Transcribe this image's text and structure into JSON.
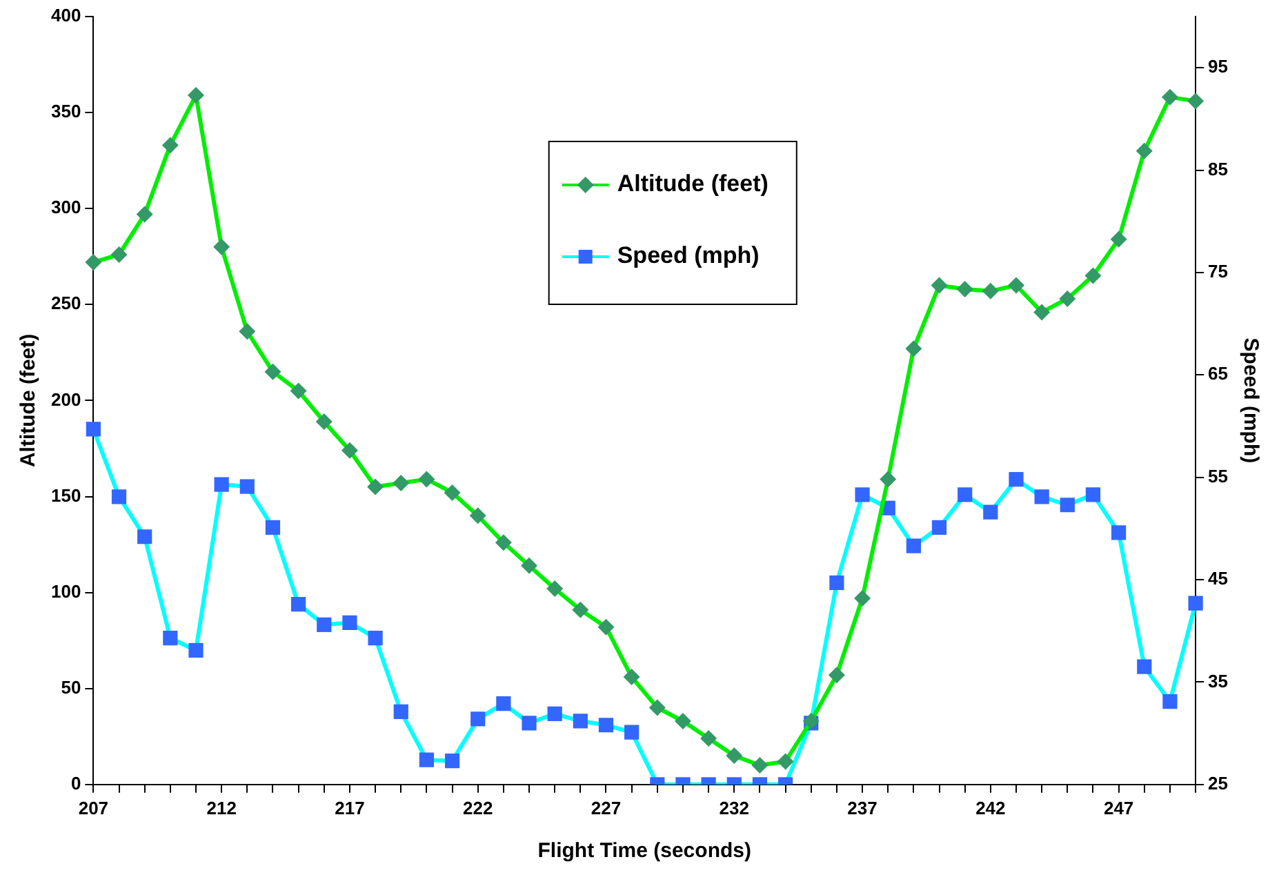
{
  "chart_data": {
    "type": "line",
    "xlabel": "Flight Time (seconds)",
    "ylabel": "Altitude (feet)",
    "y2label": "Speed (mph)",
    "categories": [
      "207",
      null,
      null,
      null,
      null,
      "212",
      null,
      null,
      null,
      null,
      "217",
      null,
      null,
      null,
      null,
      "222",
      null,
      null,
      null,
      null,
      "227",
      null,
      null,
      null,
      null,
      "232",
      null,
      null,
      null,
      null,
      "237",
      null,
      null,
      null,
      null,
      "242",
      null,
      null,
      null,
      null,
      "247",
      null,
      null,
      null
    ],
    "series": [
      {
        "name": "Altitude (feet)",
        "color": "#00ee00",
        "marker": "diamond",
        "values": [
          272,
          276,
          297,
          333,
          359,
          280,
          236,
          215,
          205,
          189,
          174,
          155,
          157,
          159,
          152,
          140,
          126,
          114,
          102,
          91,
          82,
          56,
          40,
          33,
          24,
          15,
          10,
          12,
          33,
          57,
          97,
          159,
          227,
          260,
          258,
          257,
          260,
          246,
          253,
          265,
          284,
          330,
          358,
          356
        ]
      },
      {
        "name": "Speed (mph)",
        "color": "#00ffff",
        "marker": "square",
        "axis": "y2",
        "values": [
          59.7,
          53.1,
          49.2,
          39.3,
          38.1,
          54.3,
          54.1,
          50.1,
          42.6,
          40.6,
          40.8,
          39.3,
          32.1,
          27.4,
          27.3,
          31.4,
          32.9,
          31,
          31.9,
          31.2,
          30.8,
          30.1,
          25,
          25,
          25,
          25,
          25,
          25,
          31,
          44.7,
          53.3,
          52,
          48.3,
          50.1,
          53.3,
          51.6,
          54.8,
          53.1,
          52.3,
          53.3,
          49.6,
          36.5,
          33.1,
          42.7
        ]
      }
    ],
    "ylim": [
      0,
      400
    ],
    "yticks": [
      0,
      50,
      100,
      150,
      200,
      250,
      300,
      350,
      400
    ],
    "y2lim": [
      25,
      100
    ],
    "y2ticks": [
      25,
      35,
      45,
      55,
      65,
      75,
      85,
      95
    ],
    "grid": false,
    "legend": "top"
  }
}
